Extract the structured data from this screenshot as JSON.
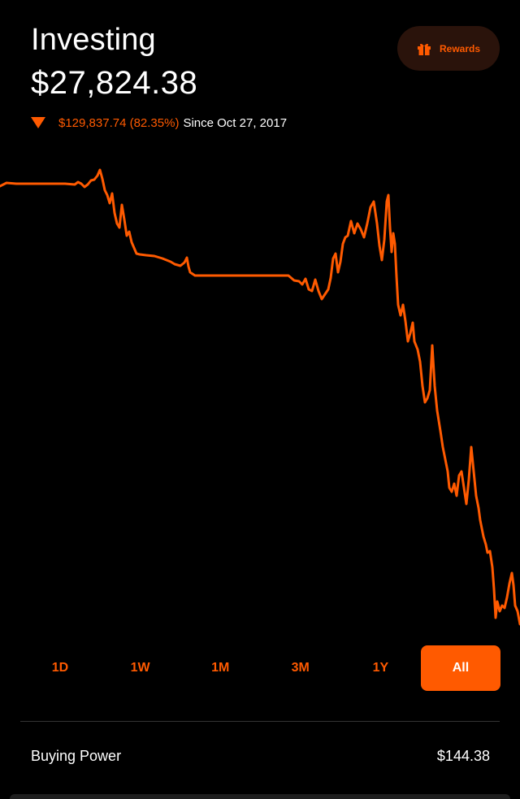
{
  "header": {
    "title": "Investing",
    "portfolio_value": "$27,824.38",
    "change_amount": "$129,837.74 (82.35%)",
    "change_since": "Since Oct 27, 2017",
    "change_direction": "down"
  },
  "rewards": {
    "label": "Rewards",
    "icon": "gift-icon"
  },
  "colors": {
    "accent": "#ff5a00",
    "background": "#000000",
    "rewards_bg": "#2a130b"
  },
  "time_ranges": {
    "items": [
      "1D",
      "1W",
      "1M",
      "3M",
      "1Y",
      "All"
    ],
    "selected": "All"
  },
  "buying_power": {
    "label": "Buying Power",
    "value": "$144.38"
  }
}
